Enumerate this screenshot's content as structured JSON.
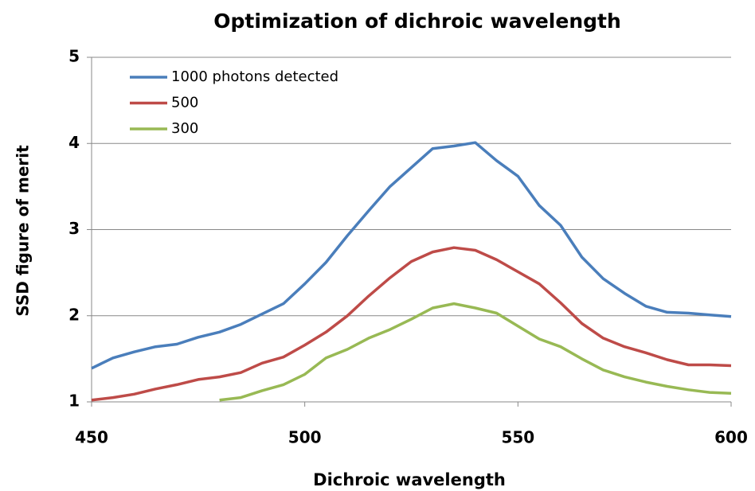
{
  "chart_data": {
    "type": "line",
    "title": "Optimization of dichroic wavelength",
    "x_label": "Dichroic wavelength",
    "y_label": "SSD figure of merit",
    "x": [
      450,
      455,
      460,
      465,
      470,
      475,
      480,
      485,
      490,
      495,
      500,
      505,
      510,
      515,
      520,
      525,
      530,
      535,
      540,
      545,
      550,
      555,
      560,
      565,
      570,
      575,
      580,
      585,
      590,
      595,
      600
    ],
    "series": [
      {
        "name": "1000 photons detected",
        "color": "#4a7ebb",
        "values": [
          1.39,
          1.51,
          1.58,
          1.64,
          1.67,
          1.75,
          1.81,
          1.9,
          2.02,
          2.14,
          2.37,
          2.62,
          2.93,
          3.22,
          3.5,
          3.72,
          3.94,
          3.97,
          4.01,
          3.8,
          3.62,
          3.28,
          3.05,
          2.68,
          2.43,
          2.26,
          2.11,
          2.04,
          2.03,
          2.01,
          1.99
        ]
      },
      {
        "name": "500",
        "color": "#be4b48",
        "values": [
          1.02,
          1.05,
          1.09,
          1.15,
          1.2,
          1.26,
          1.29,
          1.34,
          1.45,
          1.52,
          1.66,
          1.81,
          2.0,
          2.23,
          2.44,
          2.63,
          2.74,
          2.79,
          2.76,
          2.65,
          2.51,
          2.37,
          2.15,
          1.91,
          1.74,
          1.64,
          1.57,
          1.49,
          1.43,
          1.43,
          1.42
        ]
      },
      {
        "name": "300",
        "color": "#98b954",
        "values": [
          null,
          null,
          null,
          null,
          null,
          null,
          1.02,
          1.05,
          1.13,
          1.2,
          1.32,
          1.51,
          1.61,
          1.74,
          1.84,
          1.96,
          2.09,
          2.14,
          2.09,
          2.03,
          1.88,
          1.73,
          1.64,
          1.5,
          1.37,
          1.29,
          1.23,
          1.18,
          1.14,
          1.11,
          1.1
        ]
      }
    ],
    "xlim": [
      450,
      600
    ],
    "xticks": [
      450,
      500,
      550,
      600
    ],
    "ylim": [
      1,
      5
    ],
    "yticks": [
      1,
      2,
      3,
      4,
      5
    ],
    "grid": true,
    "legend": "upper left"
  }
}
